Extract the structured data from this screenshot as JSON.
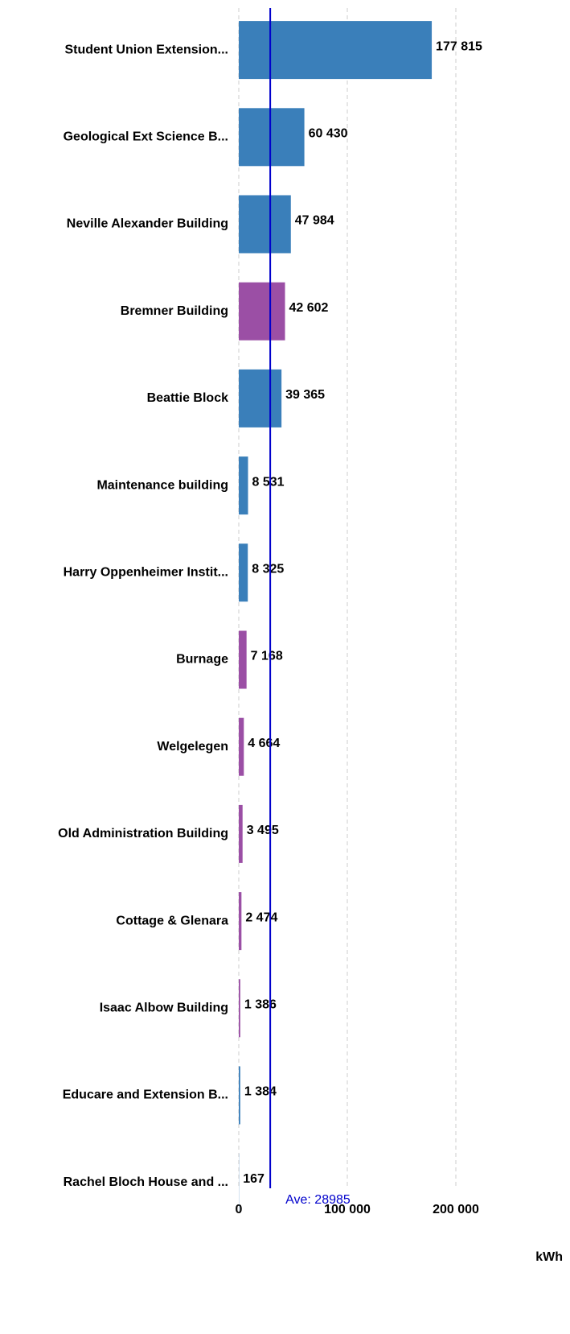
{
  "chart_data": {
    "type": "bar",
    "orientation": "horizontal",
    "categories": [
      "Student Union Extension...",
      "Geological Ext Science B...",
      "Neville Alexander Building",
      "Bremner Building",
      "Beattie Block",
      "Maintenance building",
      "Harry Oppenheimer Instit...",
      "Burnage",
      "Welgelegen",
      "Old Administration Building",
      "Cottage & Glenara",
      "Isaac Albow Building",
      "Educare and Extension B...",
      "Rachel Bloch House and ..."
    ],
    "values": [
      177815,
      60430,
      47984,
      42602,
      39365,
      8531,
      8325,
      7168,
      4664,
      3495,
      2474,
      1386,
      1384,
      167
    ],
    "value_labels": [
      "177 815",
      "60 430",
      "47 984",
      "42 602",
      "39 365",
      "8 531",
      "8 325",
      "7 168",
      "4 664",
      "3 495",
      "2 474",
      "1 386",
      "1 384",
      "167"
    ],
    "colors": [
      "#3a7fba",
      "#3a7fba",
      "#3a7fba",
      "#9b4fa5",
      "#3a7fba",
      "#3a7fba",
      "#3a7fba",
      "#9b4fa5",
      "#9b4fa5",
      "#9b4fa5",
      "#9b4fa5",
      "#9b4fa5",
      "#3a7fba",
      "#3a7fba"
    ],
    "xlim": [
      0,
      200000
    ],
    "xticks": [
      0,
      {
        "value": 100000,
        "label": "100 000"
      },
      {
        "value": 200000,
        "label": "200 000"
      }
    ],
    "x_label": "kWh",
    "grid": true,
    "average": 28985,
    "average_label": "Ave: 28985",
    "average_color": "#0000cc"
  }
}
